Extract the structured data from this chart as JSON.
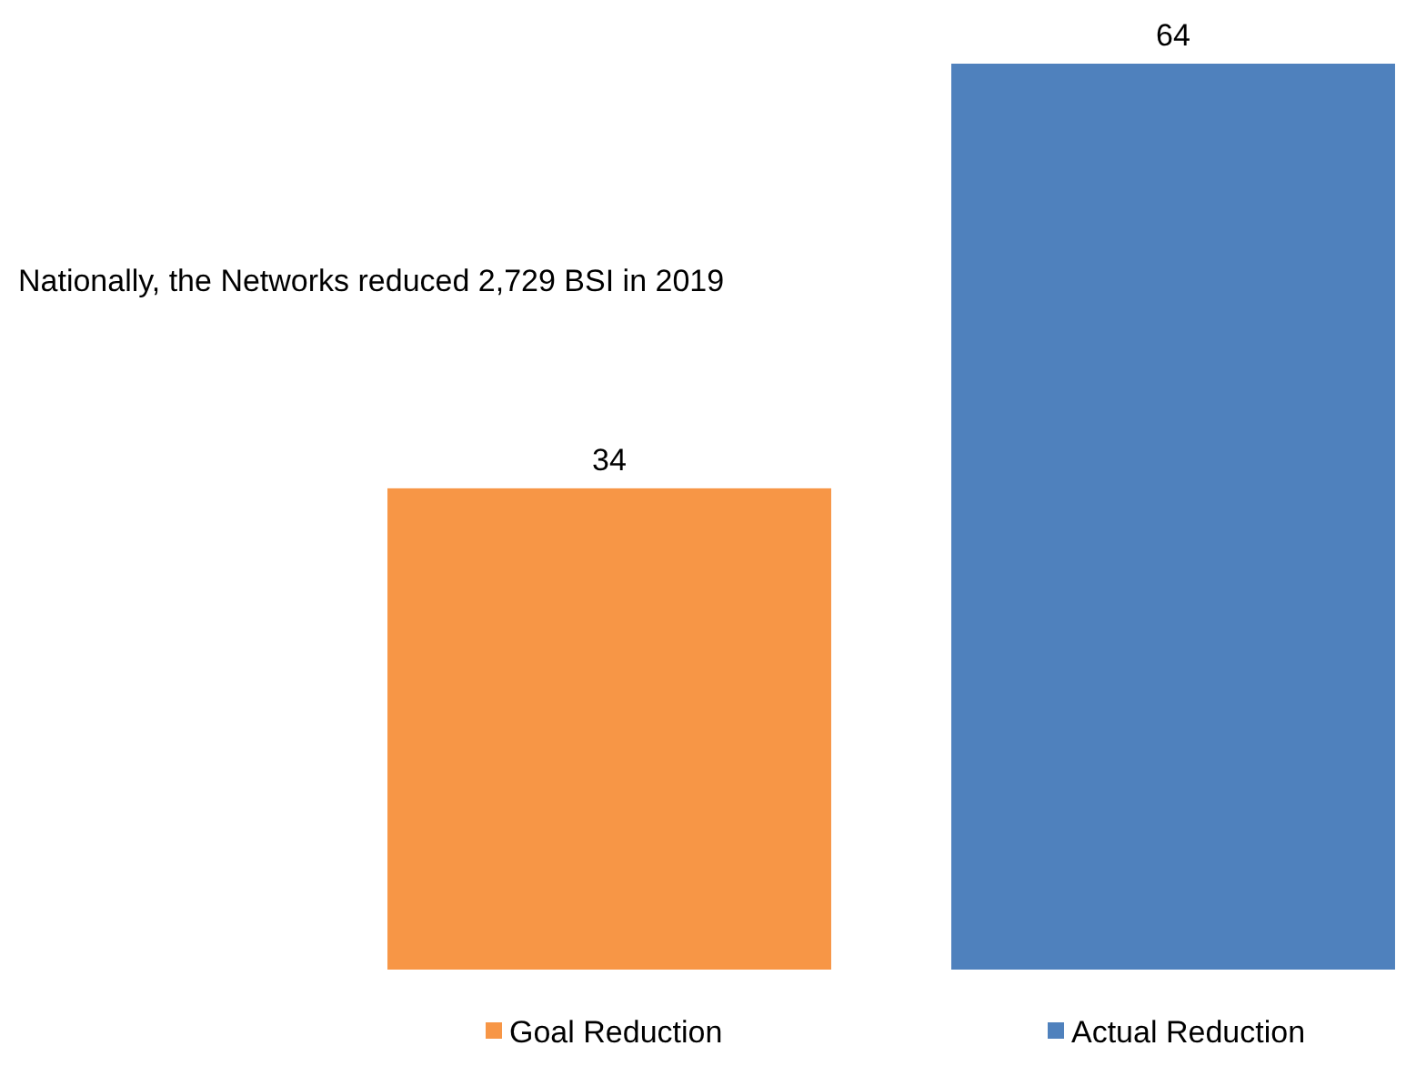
{
  "chart_data": {
    "type": "bar",
    "categories": [
      null
    ],
    "series": [
      {
        "name": "Goal Reduction",
        "color": "#f79646",
        "values": [
          34
        ]
      },
      {
        "name": "Actual Reduction",
        "color": "#4f81bd",
        "values": [
          64
        ]
      }
    ],
    "data_labels": true,
    "legend": "bottom",
    "annotations": [
      "Nationally, the Networks reduced 2,729 BSI in 2019"
    ]
  }
}
